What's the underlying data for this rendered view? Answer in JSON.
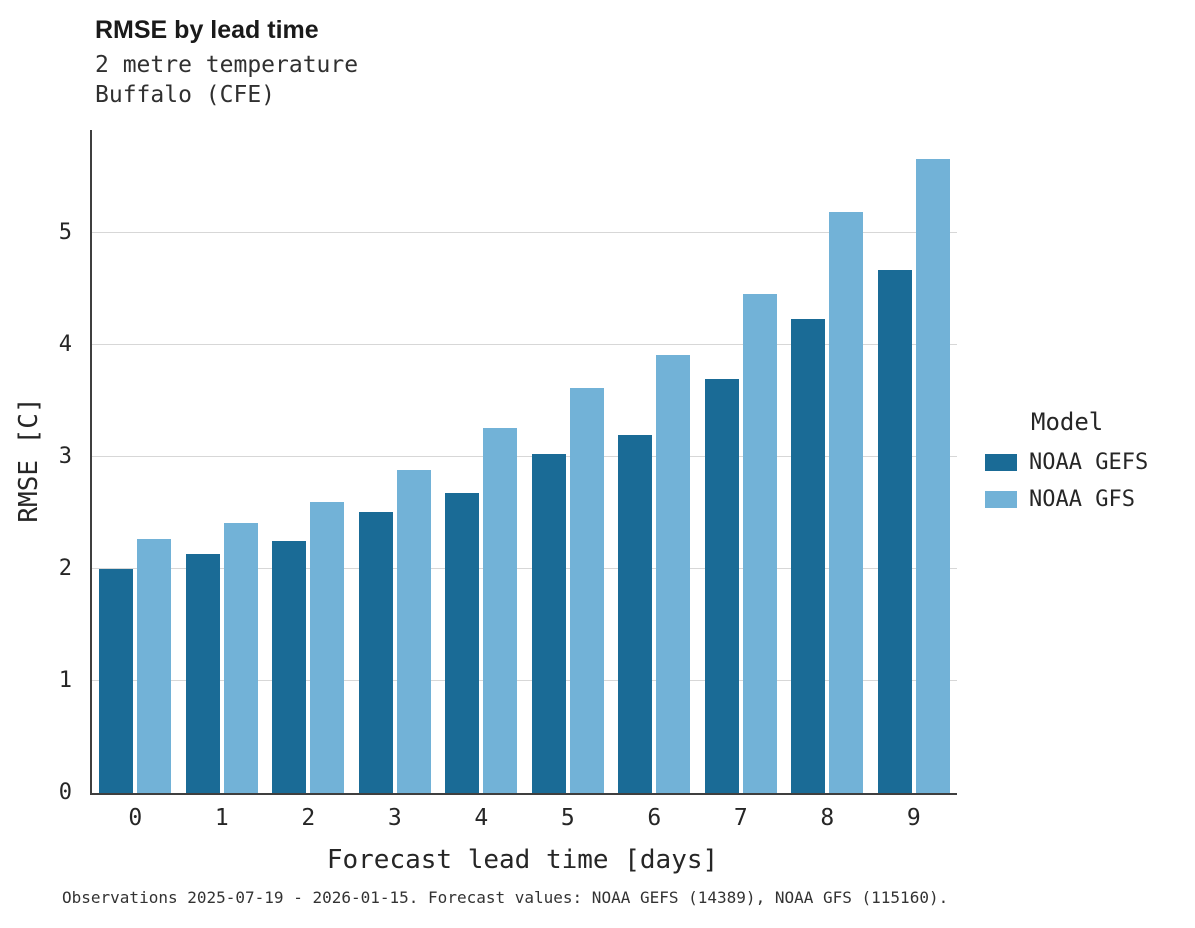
{
  "title": "RMSE by lead time",
  "subtitle_line1": "2 metre temperature",
  "subtitle_line2": "Buffalo (CFE)",
  "caption": "Observations 2025-07-19 - 2026-01-15. Forecast values: NOAA GEFS (14389), NOAA GFS (115160).",
  "legend": {
    "title": "Model",
    "items": [
      {
        "label": "NOAA GEFS",
        "color": "#1a6b96"
      },
      {
        "label": "NOAA GFS",
        "color": "#72b2d7"
      }
    ]
  },
  "chart_data": {
    "type": "bar",
    "title": "RMSE by lead time",
    "subtitle": "2 metre temperature / Buffalo (CFE)",
    "xlabel": "Forecast lead time [days]",
    "ylabel": "RMSE [C]",
    "categories": [
      "0",
      "1",
      "2",
      "3",
      "4",
      "5",
      "6",
      "7",
      "8",
      "9"
    ],
    "series": [
      {
        "name": "NOAA GEFS",
        "color": "#1a6b96",
        "values": [
          2.0,
          2.13,
          2.25,
          2.51,
          2.68,
          3.03,
          3.2,
          3.7,
          4.23,
          4.67
        ]
      },
      {
        "name": "NOAA GFS",
        "color": "#72b2d7",
        "values": [
          2.27,
          2.41,
          2.6,
          2.88,
          3.26,
          3.62,
          3.91,
          4.46,
          5.19,
          5.66
        ]
      }
    ],
    "ylim": [
      0,
      5.92
    ],
    "yticks": [
      0,
      1,
      2,
      3,
      4,
      5
    ],
    "grid": true,
    "legend_position": "right"
  }
}
